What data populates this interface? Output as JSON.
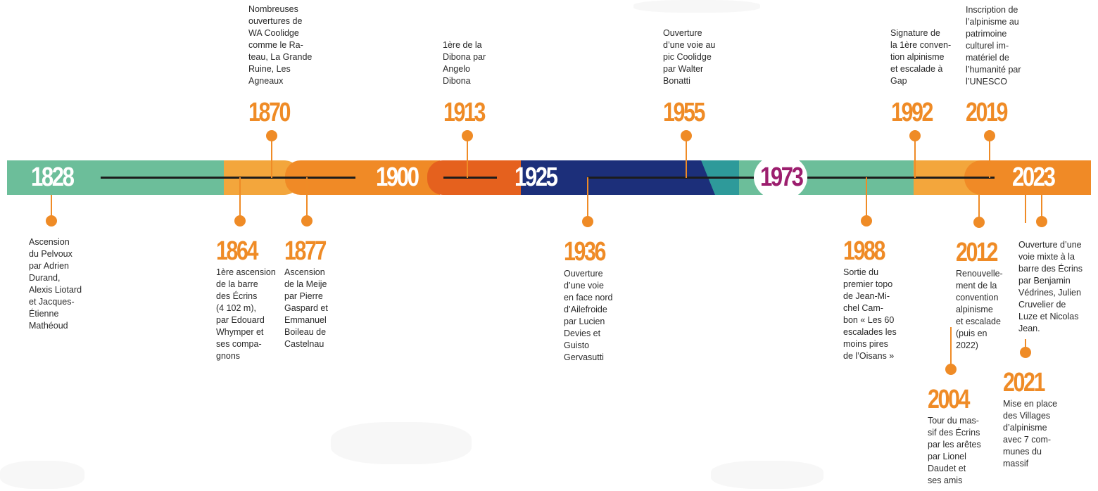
{
  "era_labels": [
    "1828",
    "1900",
    "1925",
    "1973",
    "2023"
  ],
  "colors": {
    "green": "#6cbe9a",
    "light_orange": "#f3a63c",
    "orange": "#f08a26",
    "deep_orange": "#e5611e",
    "navy": "#1c2f7a",
    "teal": "#2e9a9a",
    "magenta": "#9c1e6e",
    "text": "#2a2a2a",
    "axis": "#1c1c1c"
  },
  "events_above": [
    {
      "year": "1870",
      "lines": [
        "Nombreuses",
        "ouvertures de",
        "WA Coolidge",
        "comme le Ra-",
        "teau, La Grande",
        "Ruine, Les",
        "Agneaux"
      ]
    },
    {
      "year": "1913",
      "lines": [
        "1ère de la",
        "Dibona par",
        "Angelo",
        "Dibona"
      ]
    },
    {
      "year": "1955",
      "lines": [
        "Ouverture",
        "d’une voie au",
        "pic Coolidge",
        "par Walter",
        "Bonatti"
      ]
    },
    {
      "year": "1992",
      "lines": [
        "Signature de",
        "la 1ère conven-",
        "tion alpinisme",
        "et escalade à",
        "Gap"
      ]
    },
    {
      "year": "2019",
      "lines": [
        "Inscription de",
        "l’alpinisme au",
        "patrimoine",
        "culturel im-",
        "matériel de",
        "l’humanité par",
        "l’UNESCO"
      ]
    }
  ],
  "events_below": [
    {
      "year": "",
      "lines": [
        "Ascension",
        "du Pelvoux",
        "par Adrien",
        "Durand,",
        "Alexis Liotard",
        "et Jacques-",
        "Étienne",
        "Mathéoud"
      ]
    },
    {
      "year": "1864",
      "lines": [
        "1ère ascension",
        "de la barre",
        "des Écrins",
        "(4 102 m),",
        "par Edouard",
        "Whymper et",
        "ses compa-",
        "gnons"
      ]
    },
    {
      "year": "1877",
      "lines": [
        "Ascension",
        "de la Meije",
        "par Pierre",
        "Gaspard et",
        "Emmanuel",
        "Boileau de",
        "Castelnau"
      ]
    },
    {
      "year": "1936",
      "lines": [
        "Ouverture",
        "d’une voie",
        "en face nord",
        "d’Ailefroide",
        "par Lucien",
        "Devies et",
        "Guisto",
        "Gervasutti"
      ]
    },
    {
      "year": "1988",
      "lines": [
        "Sortie du",
        "premier topo",
        "de Jean-Mi-",
        "chel Cam-",
        "bon « Les 60",
        "escalades les",
        "moins pires",
        "de l’Oisans »"
      ]
    },
    {
      "year": "2012",
      "lines": [
        "Renouvelle-",
        "ment de la",
        "convention",
        "alpinisme",
        "et escalade",
        "(puis en",
        "2022)"
      ]
    },
    {
      "year": "2004",
      "lines": [
        "Tour du mas-",
        "sif des Écrins",
        "par les arêtes",
        "par Lionel",
        "Daudet et",
        "ses amis"
      ]
    },
    {
      "year": "",
      "lines": [
        "Ouverture d’une",
        "voie mixte à la",
        "barre des Écrins",
        "par Benjamin",
        "Védrines, Julien",
        "Cruvelier de",
        "Luze et Nicolas",
        "Jean."
      ]
    },
    {
      "year": "2021",
      "lines": [
        "Mise en place",
        "des Villages",
        "d’alpinisme",
        "avec 7 com-",
        "munes du",
        "massif"
      ]
    }
  ]
}
